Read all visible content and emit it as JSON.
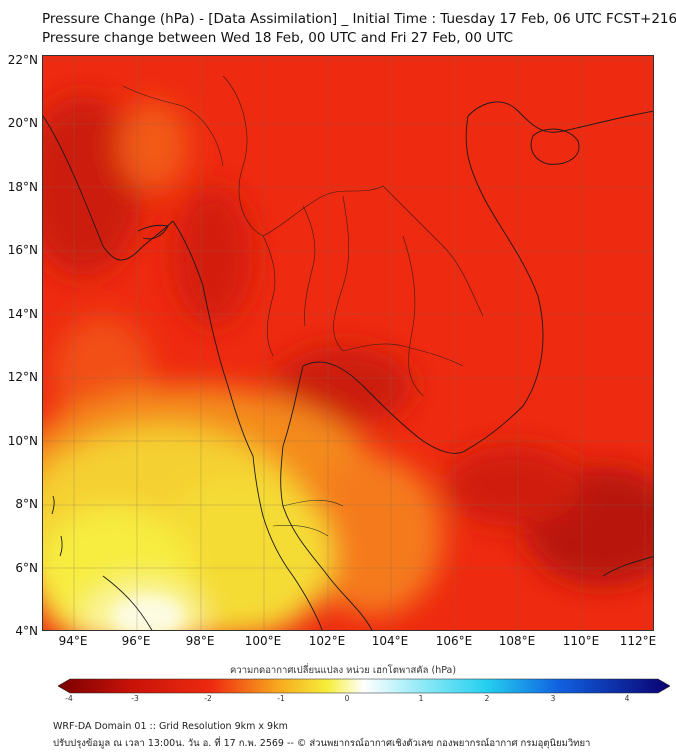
{
  "header": {
    "title_line1": "Pressure Change (hPa) - [Data Assimilation] _ Initial Time : Tuesday 17 Feb, 06 UTC FCST+216",
    "title_line2": "Pressure change between Wed 18 Feb, 00 UTC and Fri 27 Feb, 00 UTC"
  },
  "map": {
    "lat_labels": [
      "22°N",
      "20°N",
      "18°N",
      "16°N",
      "14°N",
      "12°N",
      "10°N",
      "8°N",
      "6°N",
      "4°N"
    ],
    "lon_labels": [
      "94°E",
      "96°E",
      "98°E",
      "100°E",
      "102°E",
      "104°E",
      "106°E",
      "108°E",
      "110°E",
      "112°E"
    ],
    "lat_range": [
      4,
      22
    ],
    "lon_range": [
      93,
      112.3
    ]
  },
  "colorbar": {
    "title": "ความกดอากาศเปลี่ยนแปลง หน่วย เฮกโตพาสคัล (hPa)",
    "ticks": [
      "-4",
      "-3",
      "-2",
      "-1",
      "0",
      "1",
      "2",
      "3",
      "4"
    ],
    "range": [
      -4,
      4
    ],
    "colors": {
      "dark_red": "#7a0000",
      "red": "#ee2a10",
      "orange": "#f7a91e",
      "yellow": "#f5ee3a",
      "white": "#ffffff",
      "cyan": "#25d0f0",
      "blue": "#1040d0",
      "dark_blue": "#0a0070"
    }
  },
  "footer": {
    "line1": "WRF-DA Domain 01 :: Grid Resolution 9km x 9km",
    "line2": "ปรับปรุงข้อมูล ณ เวลา 13:00น. วัน อ. ที่ 17 ก.พ. 2569 -- © ส่วนพยากรณ์อากาศเชิงตัวเลข กองพยากรณ์อากาศ กรมอุตุนิยมวิทยา"
  }
}
